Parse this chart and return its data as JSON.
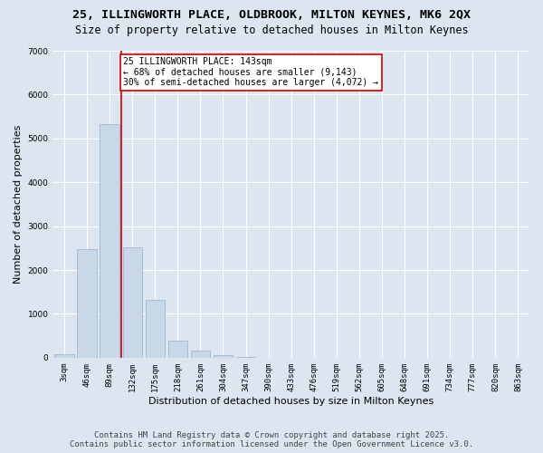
{
  "title_line1": "25, ILLINGWORTH PLACE, OLDBROOK, MILTON KEYNES, MK6 2QX",
  "title_line2": "Size of property relative to detached houses in Milton Keynes",
  "xlabel": "Distribution of detached houses by size in Milton Keynes",
  "ylabel": "Number of detached properties",
  "categories": [
    "3sqm",
    "46sqm",
    "89sqm",
    "132sqm",
    "175sqm",
    "218sqm",
    "261sqm",
    "304sqm",
    "347sqm",
    "390sqm",
    "433sqm",
    "476sqm",
    "519sqm",
    "562sqm",
    "605sqm",
    "648sqm",
    "691sqm",
    "734sqm",
    "777sqm",
    "820sqm",
    "863sqm"
  ],
  "values": [
    80,
    2480,
    5320,
    2520,
    1320,
    380,
    170,
    60,
    10,
    5,
    3,
    2,
    1,
    0,
    0,
    0,
    0,
    0,
    0,
    0,
    0
  ],
  "bar_color": "#c8d8e8",
  "bar_edge_color": "#a0b8d0",
  "vline_x": 2.5,
  "annotation_text": "25 ILLINGWORTH PLACE: 143sqm\n← 68% of detached houses are smaller (9,143)\n30% of semi-detached houses are larger (4,072) →",
  "annotation_box_color": "#ffffff",
  "annotation_box_edge_color": "#cc0000",
  "vline_color": "#cc0000",
  "ylim": [
    0,
    7000
  ],
  "yticks": [
    0,
    1000,
    2000,
    3000,
    4000,
    5000,
    6000,
    7000
  ],
  "bg_color": "#dde6f0",
  "plot_bg_color": "#dde6f0",
  "grid_color": "#ffffff",
  "footer_line1": "Contains HM Land Registry data © Crown copyright and database right 2025.",
  "footer_line2": "Contains public sector information licensed under the Open Government Licence v3.0.",
  "title_fontsize": 9.5,
  "subtitle_fontsize": 8.5,
  "axis_label_fontsize": 8,
  "tick_fontsize": 6.5,
  "annotation_fontsize": 7,
  "footer_fontsize": 6.5
}
